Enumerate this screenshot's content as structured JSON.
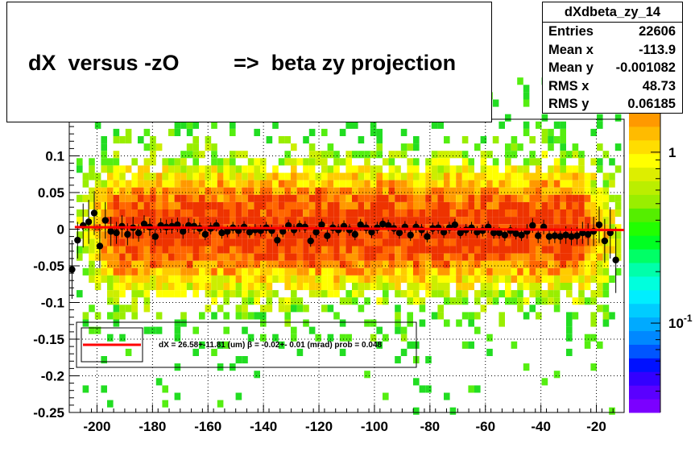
{
  "title": "dX  versus -zO         =>  beta zy projection",
  "stats": {
    "name": "dXdbeta_zy_14",
    "rows": [
      {
        "label": "Entries",
        "value": "22606"
      },
      {
        "label": "Mean x",
        "value": "-113.9"
      },
      {
        "label": "Mean y",
        "value": "-0.001082"
      },
      {
        "label": "RMS x",
        "value": "48.73"
      },
      {
        "label": "RMS y",
        "value": "0.06185"
      }
    ]
  },
  "fit_text": "dX =  26.58+-11.81 (um) β =  -0.02+- 0.01 (mrad) prob = 0.048",
  "colors": {
    "fit_line": "#ff0000",
    "markers": "#000000"
  },
  "chart_data": {
    "type": "heatmap",
    "title": "dX  versus -zO         =>  beta zy projection",
    "xlim": [
      -210,
      -10
    ],
    "ylim": [
      -0.25,
      0.15
    ],
    "x_ticks": [
      "-200",
      "-180",
      "-160",
      "-140",
      "-120",
      "-100",
      "-80",
      "-60",
      "-40",
      "-20"
    ],
    "x_tick_values": [
      -200,
      -180,
      -160,
      -140,
      -120,
      -100,
      -80,
      -60,
      -40,
      -20
    ],
    "y_ticks": [
      "-0.25",
      "-0.2",
      "-0.15",
      "-0.1",
      "-0.05",
      "0",
      "0.05",
      "0.1"
    ],
    "y_tick_values": [
      -0.25,
      -0.2,
      -0.15,
      -0.1,
      -0.05,
      0,
      0.05,
      0.1
    ],
    "grid": true,
    "colorbar": {
      "scale": "log",
      "labels": [
        {
          "text": "1",
          "value": 1
        },
        {
          "text": "10",
          "exp": "-1",
          "value": 0.1
        }
      ]
    },
    "profile": {
      "x": [
        -209,
        -207,
        -205,
        -203,
        -201,
        -199,
        -197,
        -195,
        -193,
        -191,
        -189,
        -187,
        -185,
        -183,
        -181,
        -179,
        -177,
        -175,
        -173,
        -171,
        -169,
        -167,
        -165,
        -163,
        -161,
        -159,
        -157,
        -155,
        -153,
        -151,
        -149,
        -147,
        -145,
        -143,
        -141,
        -139,
        -137,
        -135,
        -133,
        -131,
        -129,
        -127,
        -125,
        -123,
        -121,
        -119,
        -117,
        -115,
        -113,
        -111,
        -109,
        -107,
        -105,
        -103,
        -101,
        -99,
        -97,
        -95,
        -93,
        -91,
        -89,
        -87,
        -85,
        -83,
        -81,
        -79,
        -77,
        -75,
        -73,
        -71,
        -69,
        -67,
        -65,
        -63,
        -61,
        -59,
        -57,
        -55,
        -53,
        -51,
        -49,
        -47,
        -45,
        -43,
        -41,
        -39,
        -37,
        -35,
        -33,
        -31,
        -29,
        -27,
        -25,
        -23,
        -21,
        -19,
        -17,
        -15,
        -13
      ],
      "y": [
        -0.055,
        -0.015,
        0.005,
        0.01,
        0.022,
        -0.023,
        0.012,
        -0.003,
        -0.005,
        0.004,
        -0.007,
        0.002,
        -0.005,
        0.007,
        0.003,
        -0.01,
        0.005,
        0.003,
        0.004,
        0.006,
        -0.003,
        0.005,
        0.004,
        0.001,
        -0.007,
        0.001,
        0.005,
        -0.005,
        -0.003,
        0.002,
        -0.002,
        0.003,
        -0.004,
        -0.001,
        -0.002,
        0.002,
        -0.002,
        -0.015,
        -0.003,
        0.005,
        -0.001,
        0.004,
        0.003,
        -0.016,
        -0.004,
        0.006,
        -0.009,
        0.002,
        -0.001,
        0.004,
        -0.001,
        -0.007,
        0.006,
        0.002,
        -0.004,
        0.002,
        0.007,
        0.005,
        0.001,
        -0.005,
        0.003,
        -0.008,
        0.003,
        -0.001,
        -0.01,
        0.001,
        0.002,
        -0.004,
        0.002,
        0.006,
        -0.005,
        -0.001,
        0.002,
        -0.004,
        -0.002,
        0.003,
        -0.005,
        -0.005,
        -0.008,
        -0.002,
        -0.006,
        -0.008,
        -0.003,
        0.005,
        -0.009,
        0.003,
        -0.01,
        -0.009,
        -0.01,
        -0.008,
        -0.01,
        -0.009,
        -0.005,
        -0.007,
        -0.003,
        0.006,
        -0.016,
        -0.005,
        -0.042
      ],
      "yerr": [
        0.04,
        0.025,
        0.03,
        0.03,
        0.03,
        0.03,
        0.025,
        0.02,
        0.015,
        0.015,
        0.015,
        0.015,
        0.012,
        0.012,
        0.012,
        0.012,
        0.01,
        0.01,
        0.01,
        0.01,
        0.01,
        0.01,
        0.01,
        0.008,
        0.008,
        0.008,
        0.008,
        0.008,
        0.008,
        0.008,
        0.008,
        0.008,
        0.008,
        0.008,
        0.008,
        0.008,
        0.008,
        0.008,
        0.008,
        0.008,
        0.008,
        0.008,
        0.008,
        0.008,
        0.008,
        0.008,
        0.008,
        0.008,
        0.008,
        0.008,
        0.008,
        0.008,
        0.008,
        0.008,
        0.008,
        0.008,
        0.008,
        0.008,
        0.008,
        0.008,
        0.008,
        0.008,
        0.008,
        0.008,
        0.008,
        0.008,
        0.008,
        0.008,
        0.008,
        0.008,
        0.008,
        0.008,
        0.008,
        0.008,
        0.008,
        0.008,
        0.008,
        0.008,
        0.008,
        0.008,
        0.008,
        0.008,
        0.01,
        0.01,
        0.01,
        0.01,
        0.01,
        0.01,
        0.01,
        0.012,
        0.012,
        0.012,
        0.015,
        0.015,
        0.02,
        0.025,
        0.03,
        0.035,
        0.045
      ]
    },
    "fit_line": {
      "slope": -2e-05,
      "intercept": -0.0013
    }
  }
}
